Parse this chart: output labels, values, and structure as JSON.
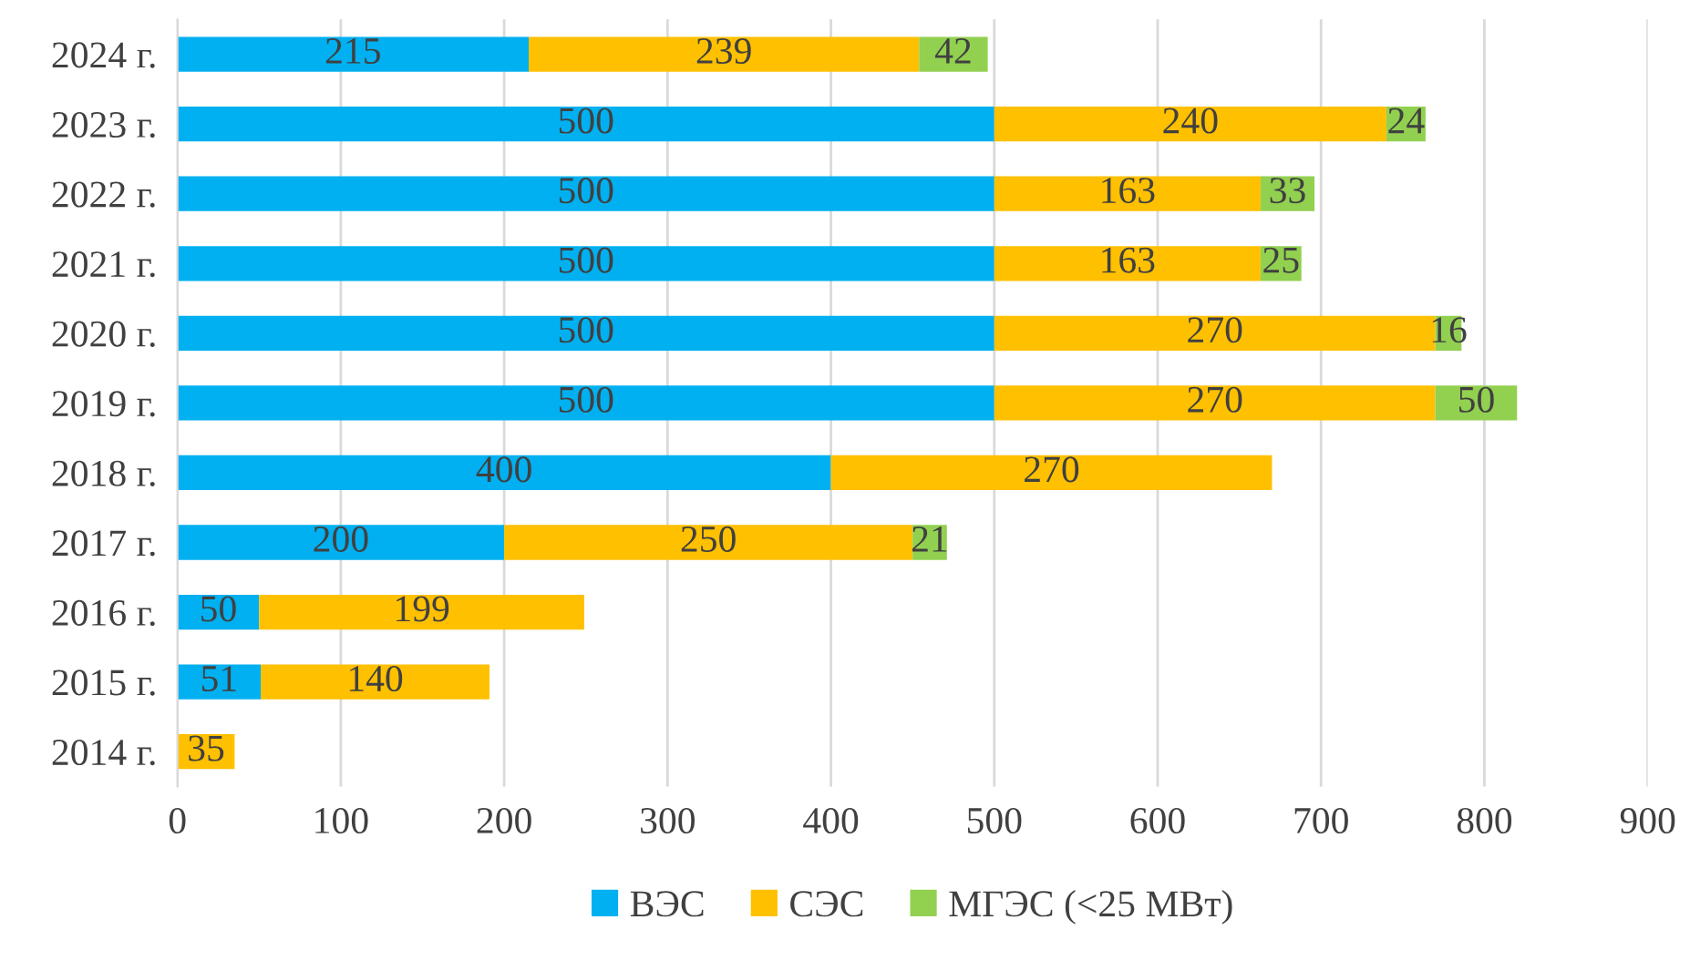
{
  "chart_data": {
    "type": "bar",
    "orientation": "horizontal",
    "stacked": true,
    "categories": [
      "2024 г.",
      "2023 г.",
      "2022 г.",
      "2021 г.",
      "2020 г.",
      "2019 г.",
      "2018 г.",
      "2017 г.",
      "2016 г.",
      "2015 г.",
      "2014 г."
    ],
    "series": [
      {
        "name": "ВЭС",
        "color": "#00b0f0",
        "values": [
          215,
          500,
          500,
          500,
          500,
          500,
          400,
          200,
          50,
          51,
          null
        ]
      },
      {
        "name": "СЭС",
        "color": "#ffc000",
        "values": [
          239,
          240,
          163,
          163,
          270,
          270,
          270,
          250,
          199,
          140,
          35
        ]
      },
      {
        "name": "МГЭС (<25 МВт)",
        "color": "#92d050",
        "values": [
          42,
          24,
          33,
          25,
          16,
          50,
          null,
          21,
          null,
          null,
          null
        ]
      }
    ],
    "xlim": [
      0,
      900
    ],
    "xticks": [
      0,
      100,
      200,
      300,
      400,
      500,
      600,
      700,
      800,
      900
    ],
    "grid": "x",
    "legend": "bottom",
    "data_labels": true
  }
}
